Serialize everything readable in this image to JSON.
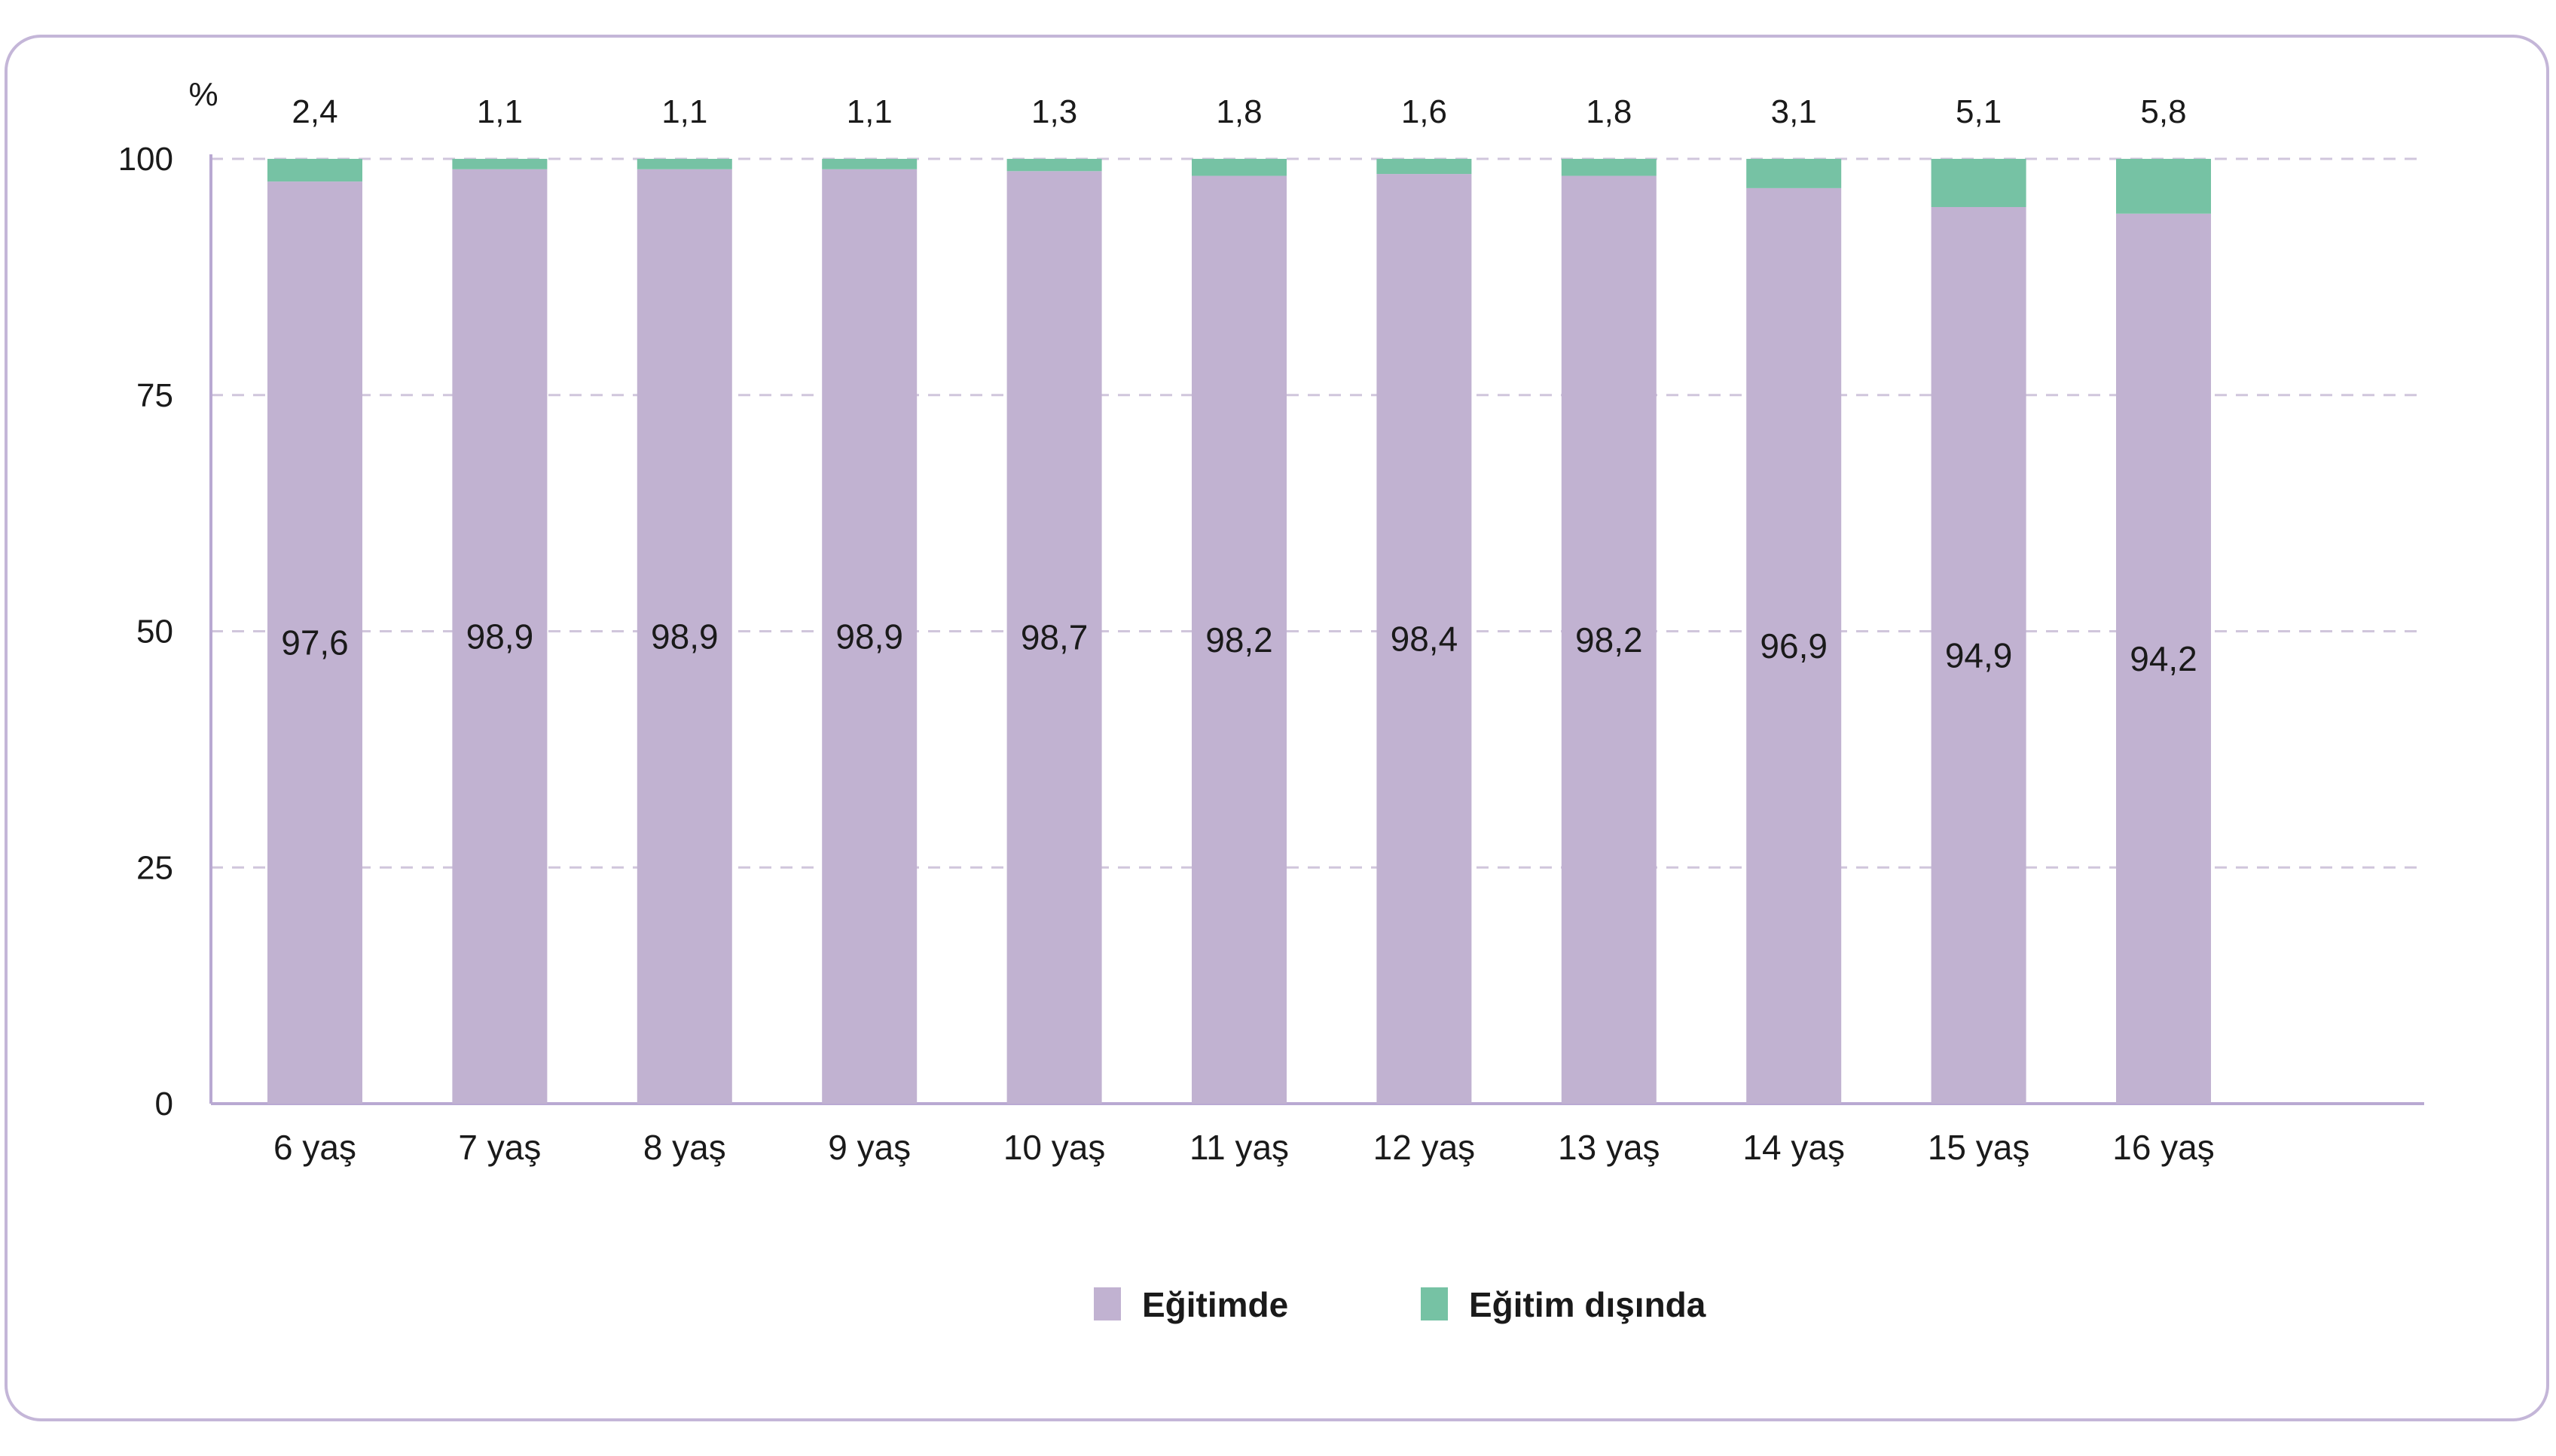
{
  "chart_data": {
    "type": "bar",
    "stacked": true,
    "unit_label": "%",
    "categories": [
      "6 yaş",
      "7 yaş",
      "8 yaş",
      "9 yaş",
      "10 yaş",
      "11 yaş",
      "12 yaş",
      "13 yaş",
      "14 yaş",
      "15 yaş",
      "16 yaş"
    ],
    "series": [
      {
        "name": "Eğitimde",
        "color": "#c1b2d1",
        "values": [
          97.6,
          98.9,
          98.9,
          98.9,
          98.7,
          98.2,
          98.4,
          98.2,
          96.9,
          94.9,
          94.2
        ],
        "labels": [
          "97,6",
          "98,9",
          "98,9",
          "98,9",
          "98,7",
          "98,2",
          "98,4",
          "98,2",
          "96,9",
          "94,9",
          "94,2"
        ]
      },
      {
        "name": "Eğitim dışında",
        "color": "#76c2a4",
        "values": [
          2.4,
          1.1,
          1.1,
          1.1,
          1.3,
          1.8,
          1.6,
          1.8,
          3.1,
          5.1,
          5.8
        ],
        "labels": [
          "2,4",
          "1,1",
          "1,1",
          "1,1",
          "1,3",
          "1,8",
          "1,6",
          "1,8",
          "3,1",
          "5,1",
          "5,8"
        ]
      }
    ],
    "ylim": [
      0,
      100
    ],
    "yticks": [
      0,
      25,
      50,
      75,
      100
    ],
    "grid": true,
    "legend_position": "bottom",
    "title": "",
    "xlabel": "",
    "ylabel": ""
  }
}
